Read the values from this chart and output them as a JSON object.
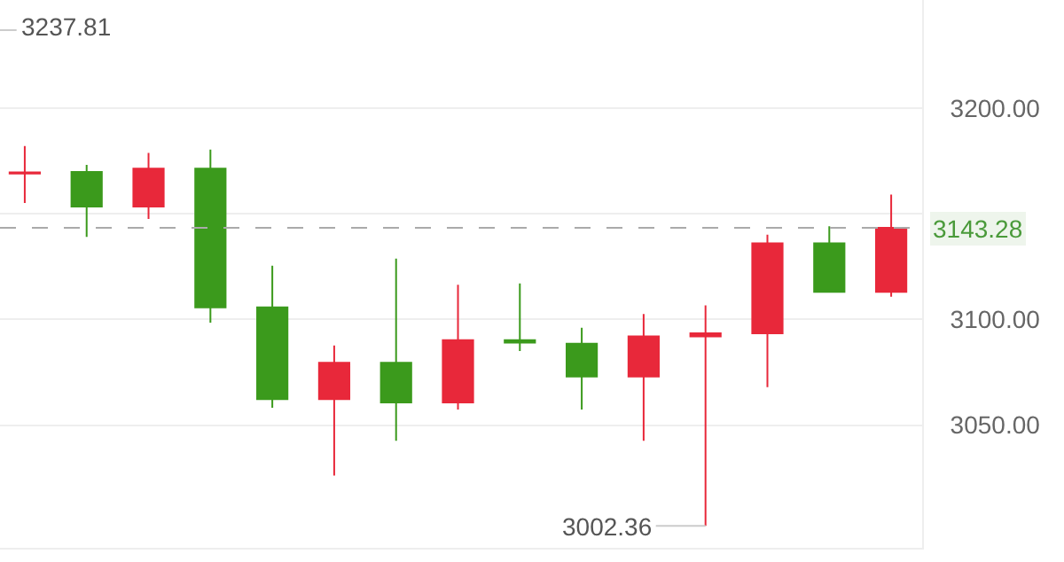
{
  "chart_data": {
    "type": "candlestick",
    "categories": [
      null,
      null,
      null,
      null,
      null,
      null,
      null,
      null,
      null,
      null,
      null,
      null,
      null,
      null,
      null
    ],
    "ohlc": [
      [
        3169,
        3182,
        3155,
        3169.5
      ],
      [
        3169.7,
        3173,
        3139,
        3153.3
      ],
      [
        3153.3,
        3178.7,
        3147.5,
        3171.3
      ],
      [
        3171.3,
        3180.3,
        3098.4,
        3105.7
      ],
      [
        3105.7,
        3125.4,
        3058.2,
        3062.3
      ],
      [
        3062.3,
        3087.7,
        3026.2,
        3079.5
      ],
      [
        3079.5,
        3128.7,
        3042.6,
        3060.7
      ],
      [
        3060.7,
        3116.4,
        3057.4,
        3090.2
      ],
      [
        3090.2,
        3117,
        3085,
        3089
      ],
      [
        3088.5,
        3096,
        3057.4,
        3073
      ],
      [
        3073,
        3102.5,
        3042.6,
        3092
      ],
      [
        3092,
        3106.6,
        3002.36,
        3093.4
      ],
      [
        3093.4,
        3140,
        3068,
        3136
      ],
      [
        3136,
        3144,
        3113,
        3113
      ],
      [
        3113,
        3159,
        3110.7,
        3143.28
      ]
    ],
    "colors": [
      "#e8283a",
      "#3b9a1c",
      "#e8283a",
      "#3b9a1c",
      "#3b9a1c",
      "#e8283a",
      "#3b9a1c",
      "#e8283a",
      "#3b9a1c",
      "#3b9a1c",
      "#e8283a",
      "#e8283a",
      "#e8283a",
      "#3b9a1c",
      "#e8283a"
    ],
    "ylim": [
      2992,
      3251
    ],
    "yticks": [
      {
        "value": 3050,
        "label": "3050.00"
      },
      {
        "value": 3100,
        "label": "3100.00"
      },
      {
        "value": 3150,
        "label": null
      },
      {
        "value": 3200,
        "label": "3200.00"
      }
    ],
    "grid": "y",
    "tick_labels": "y",
    "ref_lines": [
      {
        "axis": "y",
        "value": 3143.28,
        "label": "3143.28",
        "color": "#aaaaaa",
        "line_style": "dashed"
      }
    ],
    "annotations": [
      "3237.81",
      "3002.36"
    ]
  }
}
